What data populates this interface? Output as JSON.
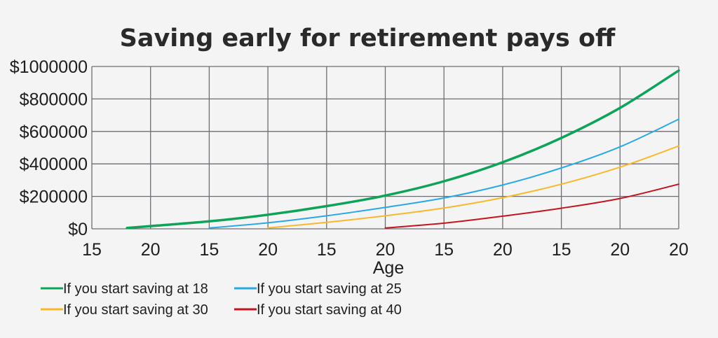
{
  "chart_data": {
    "type": "line",
    "title": "Saving early for retirement pays off",
    "xlabel": "Age",
    "ylabel": "",
    "x_tick_labels": [
      "15",
      "20",
      "15",
      "20",
      "15",
      "20",
      "15",
      "20",
      "15",
      "20",
      "20"
    ],
    "y_tick_labels": [
      "$0",
      "$200000",
      "$400000",
      "$600000",
      "$800000",
      "$1000000"
    ],
    "ylim": [
      0,
      1000000
    ],
    "grid": true,
    "legend_position": "bottom-left",
    "series": [
      {
        "name": "If you start saving at 18",
        "color": "#0fa35a",
        "values": [
          [
            0.6,
            5000
          ],
          [
            1,
            17000
          ],
          [
            2,
            46000
          ],
          [
            3,
            87000
          ],
          [
            4,
            140000
          ],
          [
            5,
            205000
          ],
          [
            6,
            293000
          ],
          [
            7,
            410000
          ],
          [
            8,
            560000
          ],
          [
            9,
            745000
          ],
          [
            10,
            975000
          ]
        ]
      },
      {
        "name": "If you start saving at 25",
        "color": "#2aa9e0",
        "values": [
          [
            2,
            5000
          ],
          [
            3,
            37000
          ],
          [
            4,
            80000
          ],
          [
            5,
            132000
          ],
          [
            6,
            190000
          ],
          [
            7,
            270000
          ],
          [
            8,
            375000
          ],
          [
            9,
            505000
          ],
          [
            10,
            675000
          ]
        ]
      },
      {
        "name": "If you start saving at 30",
        "color": "#f7b92b",
        "values": [
          [
            3,
            5000
          ],
          [
            4,
            40000
          ],
          [
            5,
            80000
          ],
          [
            6,
            128000
          ],
          [
            7,
            192000
          ],
          [
            8,
            275000
          ],
          [
            9,
            380000
          ],
          [
            10,
            510000
          ]
        ]
      },
      {
        "name": "If you start saving at 40",
        "color": "#c0161e",
        "values": [
          [
            5,
            5000
          ],
          [
            6,
            35000
          ],
          [
            7,
            78000
          ],
          [
            8,
            127000
          ],
          [
            9,
            187000
          ],
          [
            10,
            275000
          ]
        ]
      }
    ]
  }
}
